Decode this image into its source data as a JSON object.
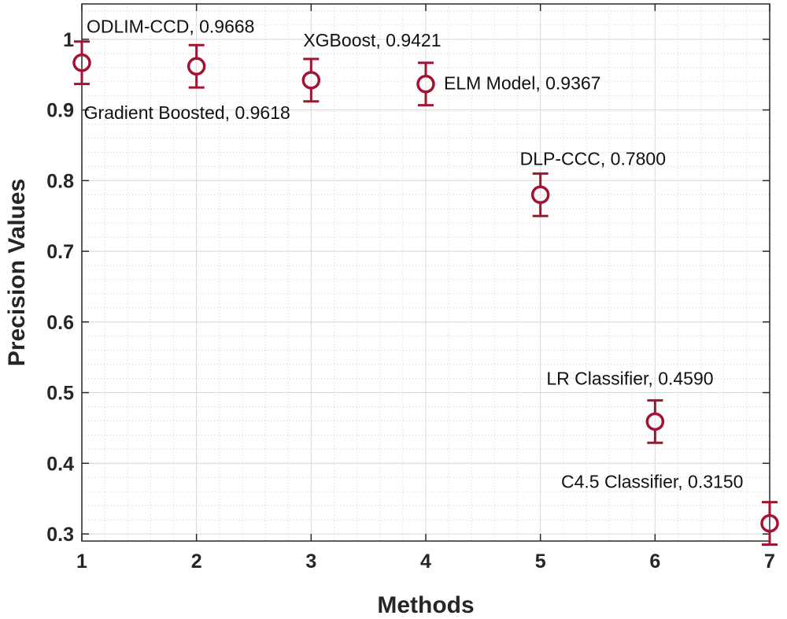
{
  "chart_data": {
    "type": "scatter",
    "xlabel": "Methods",
    "ylabel": "Precision Values",
    "xlim": [
      1,
      7
    ],
    "ylim": [
      0.29,
      1.05
    ],
    "xticks": [
      "1",
      "2",
      "3",
      "4",
      "5",
      "6",
      "7"
    ],
    "yticks": [
      "0.3",
      "0.4",
      "0.5",
      "0.6",
      "0.7",
      "0.8",
      "0.9",
      "1"
    ],
    "grid": true,
    "minor_grid": true,
    "marker_color": "#A2142F",
    "points": [
      {
        "x": 1,
        "y": 0.9668,
        "err": 0.03,
        "label": "ODLIM-CCD, 0.9668"
      },
      {
        "x": 2,
        "y": 0.9618,
        "err": 0.03,
        "label": "Gradient Boosted, 0.9618"
      },
      {
        "x": 3,
        "y": 0.9421,
        "err": 0.03,
        "label": "XGBoost, 0.9421"
      },
      {
        "x": 4,
        "y": 0.9367,
        "err": 0.03,
        "label": "ELM Model, 0.9367"
      },
      {
        "x": 5,
        "y": 0.78,
        "err": 0.03,
        "label": "DLP-CCC, 0.7800"
      },
      {
        "x": 6,
        "y": 0.459,
        "err": 0.03,
        "label": "LR Classifier, 0.4590"
      },
      {
        "x": 7,
        "y": 0.315,
        "err": 0.03,
        "label": "C4.5 Classifier, 0.3150"
      }
    ]
  }
}
